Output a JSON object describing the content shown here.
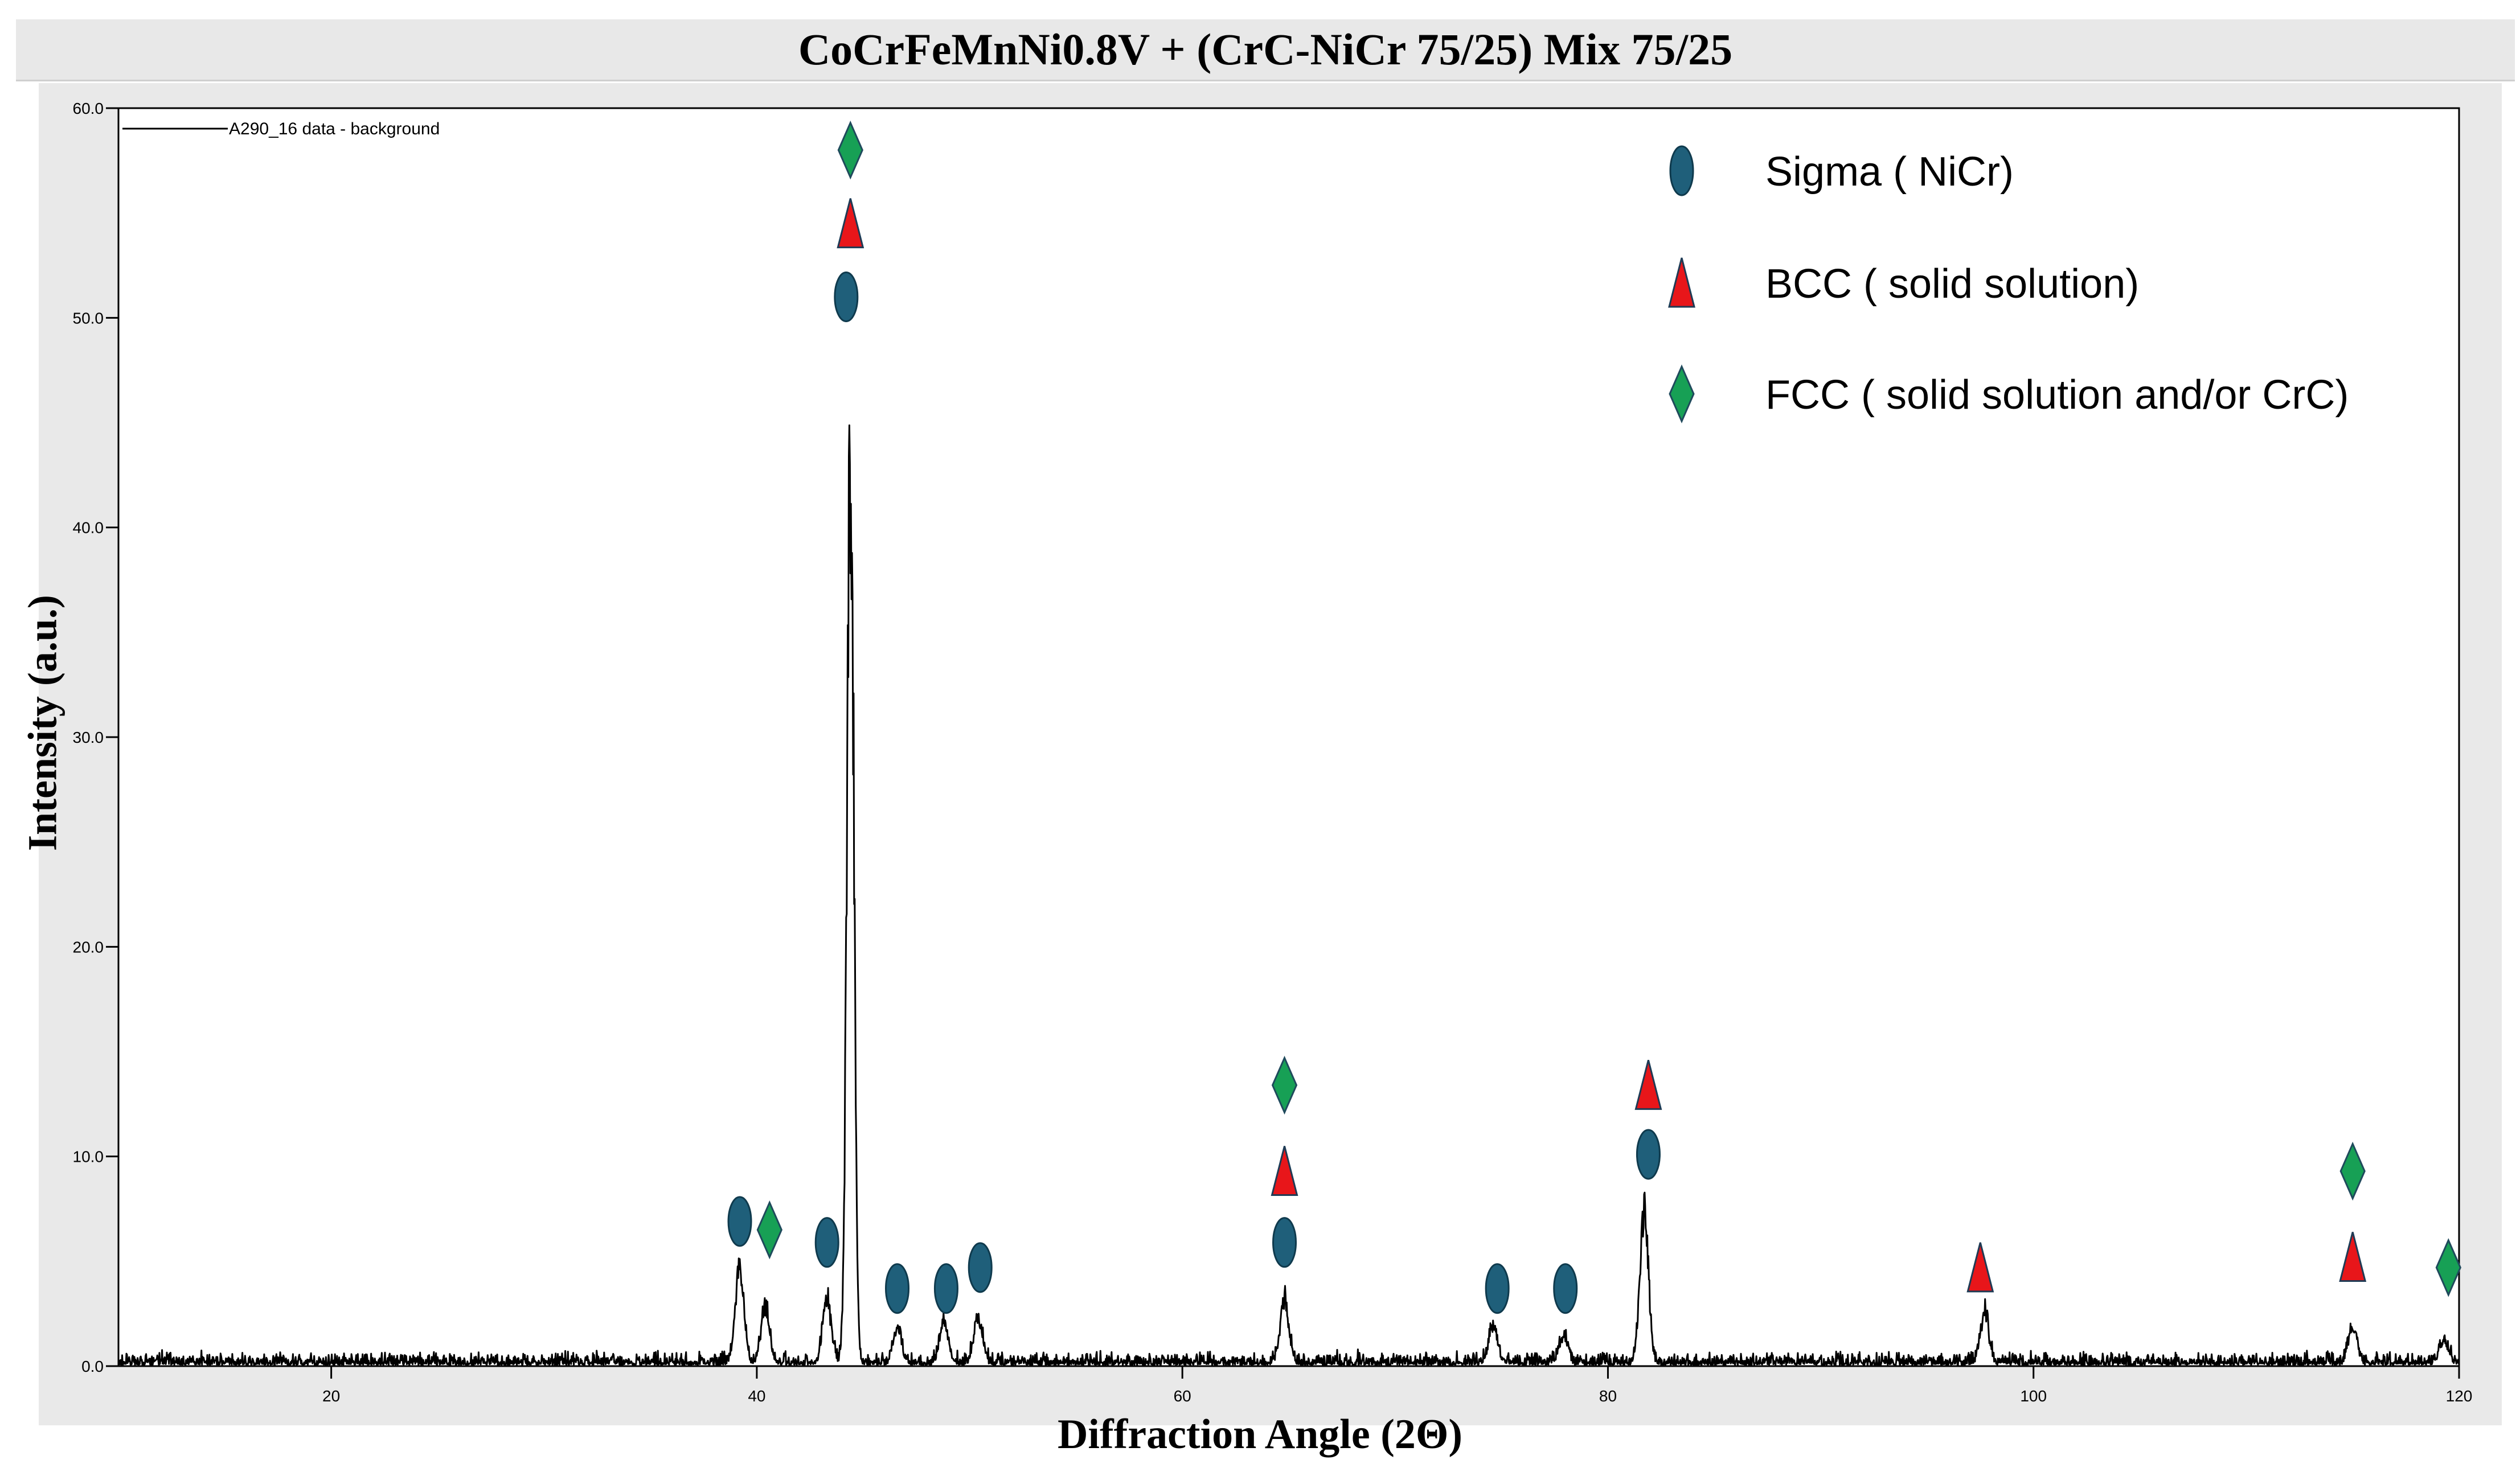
{
  "chart_data": {
    "type": "line",
    "title": "CoCrFeMnNi0.8V + (CrC-NiCr 75/25) Mix 75/25",
    "xlabel": "Diffraction Angle (2Θ)",
    "ylabel": "Intensity (a.u.)",
    "xlim": [
      10,
      120
    ],
    "ylim": [
      0,
      60
    ],
    "xticks": [
      20,
      40,
      60,
      80,
      100,
      120
    ],
    "xtick_labels": [
      "20",
      "40",
      "60",
      "80",
      "100",
      "120"
    ],
    "yticks": [
      0,
      10,
      20,
      30,
      40,
      50,
      60
    ],
    "ytick_labels": [
      "0.0",
      "10.0",
      "20.0",
      "30.0",
      "40.0",
      "50.0",
      "60.0"
    ],
    "grid": false,
    "series": [
      {
        "name": "A290_16 data - background",
        "color": "#000000",
        "baseline_noise": 0.5,
        "peaks": [
          {
            "x": 39.2,
            "y": 5.2
          },
          {
            "x": 40.4,
            "y": 3.0
          },
          {
            "x": 43.3,
            "y": 3.4
          },
          {
            "x": 44.4,
            "y": 49.5
          },
          {
            "x": 46.6,
            "y": 1.8
          },
          {
            "x": 48.8,
            "y": 2.2
          },
          {
            "x": 50.4,
            "y": 2.5
          },
          {
            "x": 64.8,
            "y": 3.4
          },
          {
            "x": 74.6,
            "y": 2.0
          },
          {
            "x": 77.9,
            "y": 1.4
          },
          {
            "x": 81.7,
            "y": 8.2
          },
          {
            "x": 97.7,
            "y": 2.6
          },
          {
            "x": 115.0,
            "y": 1.9
          },
          {
            "x": 119.3,
            "y": 1.2
          }
        ]
      }
    ],
    "legend": {
      "position": "top-right",
      "entries": [
        {
          "label": "Sigma ( NiCr)",
          "marker": "ellipse",
          "color": "#1f5f7a"
        },
        {
          "label": "BCC ( solid solution)",
          "marker": "triangle",
          "color": "#e8161a"
        },
        {
          "label": "FCC ( solid solution and/or CrC)",
          "marker": "diamond",
          "color": "#17a055"
        }
      ]
    },
    "phase_markers": [
      {
        "phase": "sigma",
        "x": 39.2,
        "y": 6.9
      },
      {
        "phase": "fcc",
        "x": 40.6,
        "y": 6.5
      },
      {
        "phase": "sigma",
        "x": 43.3,
        "y": 5.9
      },
      {
        "phase": "sigma",
        "x": 44.2,
        "y": 51.0
      },
      {
        "phase": "bcc",
        "x": 44.4,
        "y": 54.5
      },
      {
        "phase": "fcc",
        "x": 44.4,
        "y": 58.0
      },
      {
        "phase": "sigma",
        "x": 46.6,
        "y": 3.7
      },
      {
        "phase": "sigma",
        "x": 48.9,
        "y": 3.7
      },
      {
        "phase": "sigma",
        "x": 50.5,
        "y": 4.7
      },
      {
        "phase": "sigma",
        "x": 64.8,
        "y": 5.9
      },
      {
        "phase": "bcc",
        "x": 64.8,
        "y": 9.3
      },
      {
        "phase": "fcc",
        "x": 64.8,
        "y": 13.4
      },
      {
        "phase": "sigma",
        "x": 74.8,
        "y": 3.7
      },
      {
        "phase": "sigma",
        "x": 78.0,
        "y": 3.7
      },
      {
        "phase": "sigma",
        "x": 81.9,
        "y": 10.1
      },
      {
        "phase": "bcc",
        "x": 81.9,
        "y": 13.4
      },
      {
        "phase": "bcc",
        "x": 97.5,
        "y": 4.7
      },
      {
        "phase": "bcc",
        "x": 115.0,
        "y": 5.2
      },
      {
        "phase": "fcc",
        "x": 115.0,
        "y": 9.3
      },
      {
        "phase": "fcc",
        "x": 119.5,
        "y": 4.7
      }
    ]
  }
}
